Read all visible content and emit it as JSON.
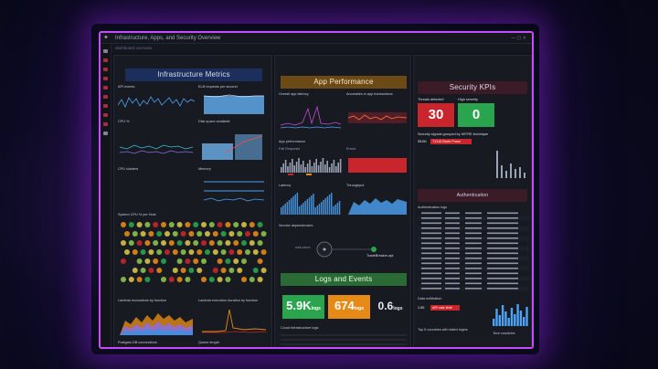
{
  "window": {
    "title": "Infrastructure, Apps, and Security Overview",
    "subtitle": "dashboard overview",
    "controls": "— ▢ ✕"
  },
  "sections": {
    "infra": "Infrastructure Metrics",
    "app": "App Performance",
    "security": "Security KPIs",
    "logs": "Logs and Events",
    "auth": "Authentication"
  },
  "infra": {
    "api_events": "API events",
    "elb": "ELB requests per second",
    "cpu": "CPU %",
    "disk": "Disk space available",
    "cpu_clusters": "CPU clusters",
    "memory": "Memory",
    "sys_cpu": "System CPU % per Host",
    "lambda_inv": "Lambda invocations by function",
    "lambda_dur": "Lambda execution duration by function",
    "postgres": "Postgres DB connections",
    "queue": "Queue length"
  },
  "app": {
    "latency": "Overall app latency",
    "anomaly": "Anomalies in app transactions",
    "app_perf": "App performance",
    "failed": "Fail Requests",
    "errors": "Errors",
    "latency2": "Latency",
    "throughput": "Throughput",
    "services": "Service dependencies",
    "svc_web": "web-store",
    "svc_api": "TradeBreaker-api"
  },
  "logs": {
    "val1": "5.9K",
    "unit1": "logs",
    "val2": "674",
    "unit2": "logs",
    "val3": "0.6",
    "unit3": "logs",
    "cloud": "Cloud Infrastructure logs"
  },
  "security": {
    "threats": "30",
    "threats_label": "Threats detected",
    "high": "0",
    "high_label": "High severity",
    "ip": "Security signals grouped by MITRE technique",
    "time": "20:00",
    "alert": "T1110 Brute Force",
    "auth_logs": "Authentication logs",
    "blocked": "1.00",
    "blocked_tag": "API rate limit",
    "traffic": "Data exfiltration",
    "signals": "Top 5 countries with failed logins",
    "traffic2": "Tech countries"
  },
  "colors": {
    "accent": "#c74cff",
    "green": "#2aa44d",
    "red": "#c8252c",
    "orange": "#e58a16",
    "blue": "#3b8fe3"
  }
}
